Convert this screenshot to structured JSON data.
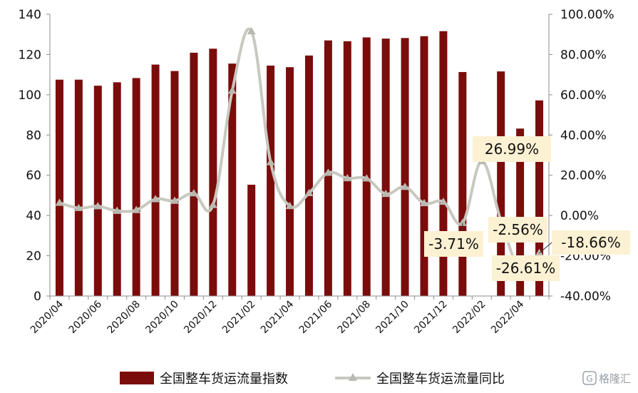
{
  "chart_data": {
    "type": "bar",
    "x": [
      "2020/04",
      "2020/05",
      "2020/06",
      "2020/07",
      "2020/08",
      "2020/09",
      "2020/10",
      "2020/11",
      "2020/12",
      "2021/01",
      "2021/02",
      "2021/03",
      "2021/04",
      "2021/05",
      "2021/06",
      "2021/07",
      "2021/08",
      "2021/09",
      "2021/10",
      "2021/11",
      "2021/12",
      "2022/01",
      "2022/02",
      "2022/03",
      "2022/04",
      "2022/05"
    ],
    "tick_labels": [
      "2020/04",
      "2020/06",
      "2020/08",
      "2020/10",
      "2020/12",
      "2021/02",
      "2021/04",
      "2021/06",
      "2021/08",
      "2021/10",
      "2021/12",
      "2022/02",
      "2022/04"
    ],
    "series": [
      {
        "name": "全国整车货运流量指数",
        "type": "bar",
        "axis": "left",
        "color": "#7b0c0c",
        "values": [
          107.5,
          107.5,
          104.5,
          106.2,
          108.3,
          115.0,
          111.8,
          120.9,
          122.9,
          115.5,
          55.3,
          114.5,
          113.7,
          119.5,
          127.0,
          126.6,
          128.5,
          127.9,
          128.2,
          129.1,
          131.6,
          111.3,
          null,
          111.6,
          83.2,
          97.2
        ]
      },
      {
        "name": "全国整车货运流量同比",
        "type": "line",
        "axis": "right",
        "color": "#c8c8c0",
        "values": [
          6.3,
          3.7,
          4.6,
          2.3,
          2.7,
          8.1,
          7.3,
          11.0,
          5.2,
          62.0,
          91.5,
          26.5,
          4.7,
          11.1,
          21.2,
          18.5,
          18.4,
          10.7,
          14.2,
          6.1,
          6.8,
          -3.71,
          26.99,
          -2.56,
          -26.61,
          -18.66
        ]
      }
    ],
    "y_left": {
      "ylim": [
        0,
        140
      ],
      "ticks": [
        "0",
        "20",
        "40",
        "60",
        "80",
        "100",
        "120",
        "140"
      ]
    },
    "y_right": {
      "ylim": [
        -40,
        100
      ],
      "ticks": [
        "-40.00%",
        "-20.00%",
        "0.00%",
        "20.00%",
        "40.00%",
        "60.00%",
        "80.00%",
        "100.00%"
      ]
    },
    "annotations": [
      {
        "text": "26.99%",
        "at": "2022/02"
      },
      {
        "text": "-3.71%",
        "at": "2022/01"
      },
      {
        "text": "-2.56%",
        "at": "2022/03"
      },
      {
        "text": "-26.61%",
        "at": "2022/04"
      },
      {
        "text": "-18.66%",
        "at": "2022/05"
      }
    ],
    "legend_position": "bottom",
    "grid": false
  },
  "watermark": "格隆汇",
  "colors": {
    "bar": "#7b0c0c",
    "line": "#c8c8c0",
    "callout_bg": "#fdf1d3",
    "axis": "#8c8c8c"
  }
}
